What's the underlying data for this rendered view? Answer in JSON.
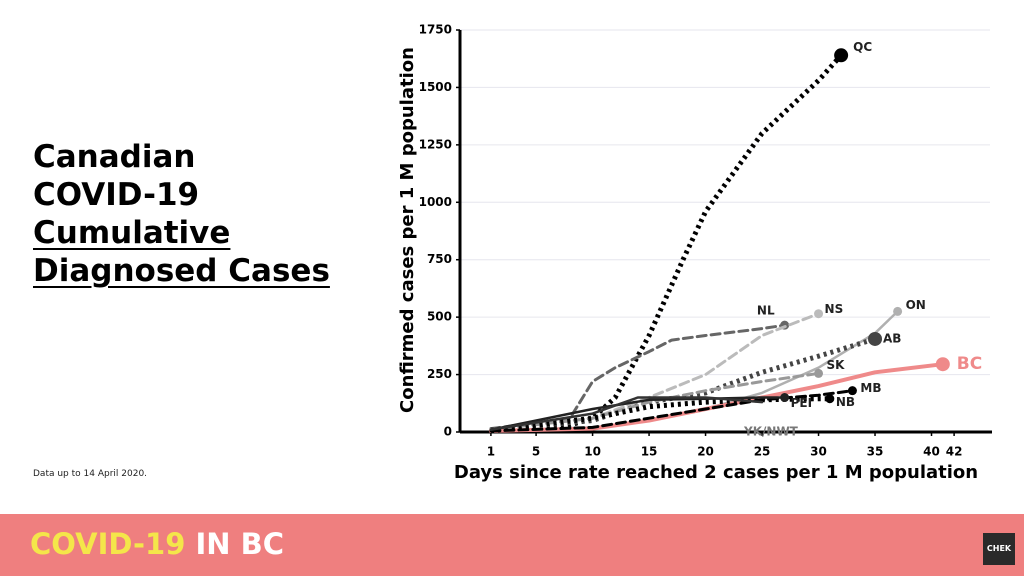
{
  "slide": {
    "title_lines": [
      "Canadian",
      "COVID-19",
      "Cumulative",
      "Diagnosed Cases"
    ],
    "note": "Data up to 14 April 2020.",
    "footer": {
      "highlight": "COVID-19",
      "rest": "IN BC"
    },
    "logo": "CHEK"
  },
  "chart_data": {
    "type": "line",
    "xlabel": "Days since rate reached 2 cases per 1 M population",
    "ylabel": "Confirmed cases per 1 M population",
    "xlim": [
      -2,
      45
    ],
    "xticks": [
      1,
      5,
      10,
      15,
      20,
      25,
      30,
      35,
      40,
      42
    ],
    "ylim": [
      0,
      1750
    ],
    "yticks": [
      0,
      250,
      500,
      750,
      1000,
      1250,
      1500,
      1750
    ],
    "grid": true,
    "series": [
      {
        "name": "QC",
        "color": "#000000",
        "style": "dotted",
        "marker": "large",
        "x": [
          1,
          5,
          8,
          10,
          12,
          15,
          18,
          20,
          25,
          30,
          32
        ],
        "values": [
          10,
          20,
          30,
          60,
          150,
          420,
          750,
          960,
          1300,
          1530,
          1640
        ]
      },
      {
        "name": "NL",
        "color": "#666666",
        "style": "dashed",
        "marker": "small",
        "x": [
          1,
          5,
          8,
          10,
          12,
          15,
          17,
          20,
          25,
          27
        ],
        "values": [
          15,
          40,
          60,
          220,
          280,
          350,
          400,
          420,
          450,
          465
        ]
      },
      {
        "name": "NS",
        "color": "#bbbbbb",
        "style": "dashed",
        "marker": "small",
        "x": [
          1,
          10,
          15,
          20,
          25,
          30
        ],
        "values": [
          10,
          60,
          150,
          250,
          420,
          515
        ]
      },
      {
        "name": "ON",
        "color": "#b0b0b0",
        "style": "solid",
        "marker": "small",
        "x": [
          1,
          10,
          15,
          20,
          25,
          30,
          35,
          37
        ],
        "values": [
          5,
          20,
          50,
          100,
          170,
          280,
          430,
          525
        ]
      },
      {
        "name": "AB",
        "color": "#444444",
        "style": "dotted",
        "marker": "large",
        "x": [
          1,
          10,
          15,
          20,
          25,
          30,
          35
        ],
        "values": [
          10,
          50,
          130,
          170,
          260,
          330,
          405
        ]
      },
      {
        "name": "BC",
        "color": "#ef8a8a",
        "style": "solid",
        "marker": "large",
        "x": [
          1,
          10,
          15,
          20,
          25,
          30,
          35,
          41
        ],
        "values": [
          5,
          15,
          50,
          100,
          150,
          200,
          260,
          295
        ]
      },
      {
        "name": "SK",
        "color": "#999999",
        "style": "dashed",
        "marker": "small",
        "x": [
          1,
          10,
          15,
          20,
          25,
          30
        ],
        "values": [
          10,
          60,
          130,
          180,
          220,
          255
        ]
      },
      {
        "name": "MB",
        "color": "#000000",
        "style": "dashed",
        "marker": "small",
        "x": [
          1,
          10,
          15,
          20,
          25,
          30,
          33
        ],
        "values": [
          5,
          20,
          60,
          100,
          140,
          160,
          180
        ]
      },
      {
        "name": "NB",
        "color": "#000000",
        "style": "dotted",
        "marker": "small",
        "x": [
          1,
          10,
          15,
          20,
          25,
          30,
          31
        ],
        "values": [
          5,
          60,
          110,
          130,
          140,
          145,
          145
        ]
      },
      {
        "name": "PEI",
        "color": "#222222",
        "style": "solid",
        "marker": "small",
        "x": [
          1,
          10,
          15,
          20,
          25,
          27
        ],
        "values": [
          10,
          100,
          140,
          145,
          150,
          150
        ]
      },
      {
        "name": "YK/NWT",
        "color": "#333333",
        "style": "solid",
        "marker": "none",
        "x": [
          1,
          10,
          14,
          20,
          25
        ],
        "values": [
          10,
          80,
          150,
          150,
          130
        ]
      }
    ]
  }
}
